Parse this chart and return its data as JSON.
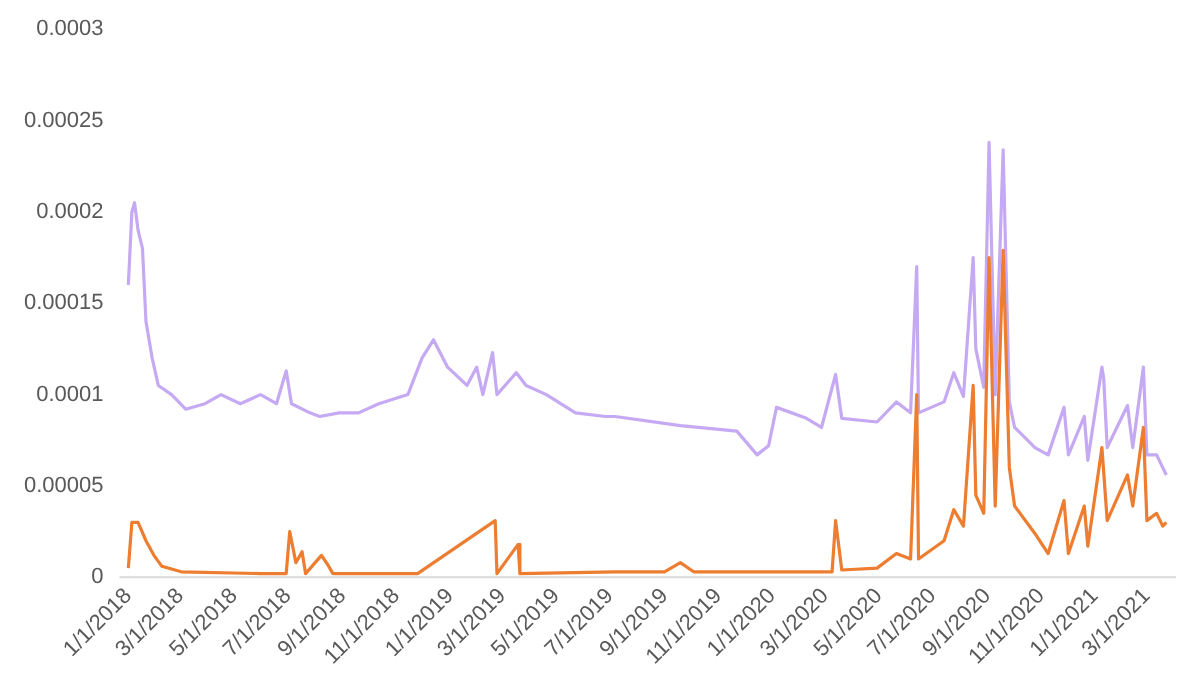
{
  "chart_data": {
    "type": "line",
    "xlim": [
      "2017-12-22",
      "2021-04-03"
    ],
    "xticks": [
      {
        "value": "2018-01-01",
        "label": "1/1/2018"
      },
      {
        "value": "2018-03-01",
        "label": "3/1/2018"
      },
      {
        "value": "2018-05-01",
        "label": "5/1/2018"
      },
      {
        "value": "2018-07-01",
        "label": "7/1/2018"
      },
      {
        "value": "2018-09-01",
        "label": "9/1/2018"
      },
      {
        "value": "2018-11-01",
        "label": "11/1/2018"
      },
      {
        "value": "2019-01-01",
        "label": "1/1/2019"
      },
      {
        "value": "2019-03-01",
        "label": "3/1/2019"
      },
      {
        "value": "2019-05-01",
        "label": "5/1/2019"
      },
      {
        "value": "2019-07-01",
        "label": "7/1/2019"
      },
      {
        "value": "2019-09-01",
        "label": "9/1/2019"
      },
      {
        "value": "2019-11-01",
        "label": "11/1/2019"
      },
      {
        "value": "2020-01-01",
        "label": "1/1/2020"
      },
      {
        "value": "2020-03-01",
        "label": "3/1/2020"
      },
      {
        "value": "2020-05-01",
        "label": "5/1/2020"
      },
      {
        "value": "2020-07-01",
        "label": "7/1/2020"
      },
      {
        "value": "2020-09-01",
        "label": "9/1/2020"
      },
      {
        "value": "2020-11-01",
        "label": "11/1/2020"
      },
      {
        "value": "2021-01-01",
        "label": "1/1/2021"
      },
      {
        "value": "2021-03-01",
        "label": "3/1/2021"
      }
    ],
    "ylim": [
      0,
      0.0003
    ],
    "yticks": [
      0,
      {
        "value": 5e-05,
        "label": "0.00005"
      },
      0.0001,
      0.00015,
      0.0002,
      0.00025,
      0.0003
    ],
    "grid": false,
    "legend": false,
    "marker": "none",
    "line_style": "solid",
    "series": [
      {
        "color": "#c5a9f2",
        "x": [
          "2018-01-01",
          "2018-01-05",
          "2018-01-08",
          "2018-01-12",
          "2018-01-17",
          "2018-01-21",
          "2018-01-28",
          "2018-02-04",
          "2018-02-19",
          "2018-03-07",
          "2018-03-29",
          "2018-04-16",
          "2018-05-08",
          "2018-05-31",
          "2018-06-18",
          "2018-06-29",
          "2018-07-05",
          "2018-07-26",
          "2018-08-06",
          "2018-08-28",
          "2018-09-19",
          "2018-10-12",
          "2018-11-14",
          "2018-11-30",
          "2018-12-13",
          "2018-12-29",
          "2019-01-20",
          "2019-01-31",
          "2019-02-07",
          "2019-02-18",
          "2019-02-23",
          "2019-03-17",
          "2019-03-28",
          "2019-04-20",
          "2019-05-23",
          "2019-06-26",
          "2019-07-07",
          "2019-09-19",
          "2019-11-22",
          "2019-12-15",
          "2019-12-28",
          "2020-01-06",
          "2020-02-09",
          "2020-02-26",
          "2020-03-13",
          "2020-03-20",
          "2020-04-29",
          "2020-05-21",
          "2020-06-06",
          "2020-06-13",
          "2020-06-15",
          "2020-07-14",
          "2020-07-25",
          "2020-08-05",
          "2020-08-16",
          "2020-08-19",
          "2020-08-28",
          "2020-09-03",
          "2020-09-10",
          "2020-09-19",
          "2020-09-26",
          "2020-10-02",
          "2020-10-25",
          "2020-11-09",
          "2020-11-27",
          "2020-12-02",
          "2020-12-20",
          "2020-12-24",
          "2021-01-09",
          "2021-01-11",
          "2021-01-15",
          "2021-02-07",
          "2021-02-13",
          "2021-02-25",
          "2021-03-01",
          "2021-03-12",
          "2021-03-19",
          "2021-03-23"
        ],
        "values": [
          0.00016,
          0.0002,
          0.000205,
          0.00019,
          0.00018,
          0.00014,
          0.00012,
          0.000105,
          0.0001,
          9.2e-05,
          9.5e-05,
          0.0001,
          9.5e-05,
          0.0001,
          9.5e-05,
          0.000113,
          9.5e-05,
          9e-05,
          8.8e-05,
          9e-05,
          9e-05,
          9.5e-05,
          0.0001,
          0.00012,
          0.00013,
          0.000115,
          0.000105,
          0.000115,
          0.0001,
          0.000123,
          0.0001,
          0.000112,
          0.000105,
          0.0001,
          9e-05,
          8.8e-05,
          8.8e-05,
          8.3e-05,
          8e-05,
          6.7e-05,
          7.2e-05,
          9.3e-05,
          8.7e-05,
          8.2e-05,
          0.000111,
          8.7e-05,
          8.5e-05,
          9.6e-05,
          9e-05,
          0.00017,
          9e-05,
          9.6e-05,
          0.000112,
          9.9e-05,
          0.000175,
          0.000125,
          0.000104,
          0.000238,
          0.0001,
          0.000234,
          9.6e-05,
          8.2e-05,
          7.1e-05,
          6.7e-05,
          9.3e-05,
          6.7e-05,
          8.8e-05,
          6.4e-05,
          0.000115,
          0.000109,
          7.1e-05,
          9.4e-05,
          7.1e-05,
          0.000115,
          6.7e-05,
          6.7e-05,
          6e-05,
          5.6e-05
        ]
      },
      {
        "color": "#ed7d31",
        "x": [
          "2018-01-01",
          "2018-01-05",
          "2018-01-12",
          "2018-01-21",
          "2018-01-30",
          "2018-02-08",
          "2018-03-02",
          "2018-05-31",
          "2018-06-29",
          "2018-07-03",
          "2018-07-10",
          "2018-07-17",
          "2018-07-21",
          "2018-08-08",
          "2018-08-15",
          "2018-08-21",
          "2018-11-25",
          "2019-02-21",
          "2019-02-23",
          "2019-03-19",
          "2019-03-21",
          "2019-07-07",
          "2019-09-01",
          "2019-09-19",
          "2019-10-04",
          "2020-03-09",
          "2020-03-13",
          "2020-03-20",
          "2020-04-29",
          "2020-05-21",
          "2020-06-06",
          "2020-06-13",
          "2020-06-15",
          "2020-07-14",
          "2020-07-25",
          "2020-08-05",
          "2020-08-16",
          "2020-08-19",
          "2020-08-28",
          "2020-09-03",
          "2020-09-10",
          "2020-09-19",
          "2020-09-26",
          "2020-10-02",
          "2020-10-25",
          "2020-11-09",
          "2020-11-27",
          "2020-12-02",
          "2020-12-20",
          "2020-12-24",
          "2021-01-09",
          "2021-01-15",
          "2021-02-07",
          "2021-02-13",
          "2021-02-25",
          "2021-03-01",
          "2021-03-12",
          "2021-03-19",
          "2021-03-23"
        ],
        "values": [
          5e-06,
          3e-05,
          3e-05,
          2e-05,
          1.2e-05,
          6e-06,
          3e-06,
          2e-06,
          2e-06,
          2.5e-05,
          8e-06,
          1.4e-05,
          2e-06,
          1.2e-05,
          7e-06,
          2e-06,
          2e-06,
          3.1e-05,
          2e-06,
          1.8e-05,
          2e-06,
          3e-06,
          3e-06,
          8e-06,
          3e-06,
          3e-06,
          3.1e-05,
          4e-06,
          5e-06,
          1.3e-05,
          1e-05,
          0.0001,
          1e-05,
          2e-05,
          3.7e-05,
          2.8e-05,
          0.000105,
          4.5e-05,
          3.5e-05,
          0.000175,
          3.9e-05,
          0.000179,
          6e-05,
          3.9e-05,
          2.4e-05,
          1.3e-05,
          4.2e-05,
          1.3e-05,
          3.9e-05,
          1.7e-05,
          7.1e-05,
          3.1e-05,
          5.6e-05,
          3.9e-05,
          8.2e-05,
          3.1e-05,
          3.5e-05,
          2.8e-05,
          3e-05
        ]
      }
    ]
  }
}
